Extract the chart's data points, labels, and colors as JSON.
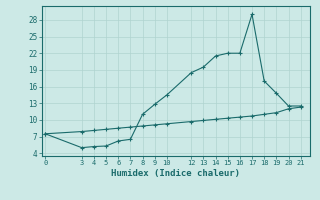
{
  "xlabel": "Humidex (Indice chaleur)",
  "ylabel": "",
  "background_color": "#cce9e6",
  "line_color": "#1a6b6b",
  "grid_color": "#b0d4d0",
  "x_curve1": [
    0,
    3,
    4,
    5,
    6,
    7,
    8,
    9,
    10,
    12,
    13,
    14,
    15,
    16,
    17,
    18,
    19,
    20,
    21
  ],
  "y_curve1": [
    7.5,
    5.0,
    5.2,
    5.3,
    6.2,
    6.5,
    11.0,
    12.8,
    14.5,
    18.5,
    19.5,
    21.5,
    22.0,
    22.0,
    29.0,
    17.0,
    14.8,
    12.5,
    12.5
  ],
  "x_curve2": [
    0,
    3,
    4,
    5,
    6,
    7,
    8,
    9,
    10,
    12,
    13,
    14,
    15,
    16,
    17,
    18,
    19,
    20,
    21
  ],
  "y_curve2": [
    7.5,
    7.9,
    8.1,
    8.3,
    8.5,
    8.7,
    8.9,
    9.1,
    9.3,
    9.7,
    9.9,
    10.1,
    10.3,
    10.5,
    10.7,
    11.0,
    11.3,
    12.0,
    12.3
  ],
  "yticks": [
    4,
    7,
    10,
    13,
    16,
    19,
    22,
    25,
    28
  ],
  "xticks": [
    0,
    3,
    4,
    5,
    6,
    7,
    8,
    9,
    10,
    12,
    13,
    14,
    15,
    16,
    17,
    18,
    19,
    20,
    21
  ],
  "xlim": [
    -0.3,
    21.8
  ],
  "ylim": [
    3.5,
    30.5
  ]
}
